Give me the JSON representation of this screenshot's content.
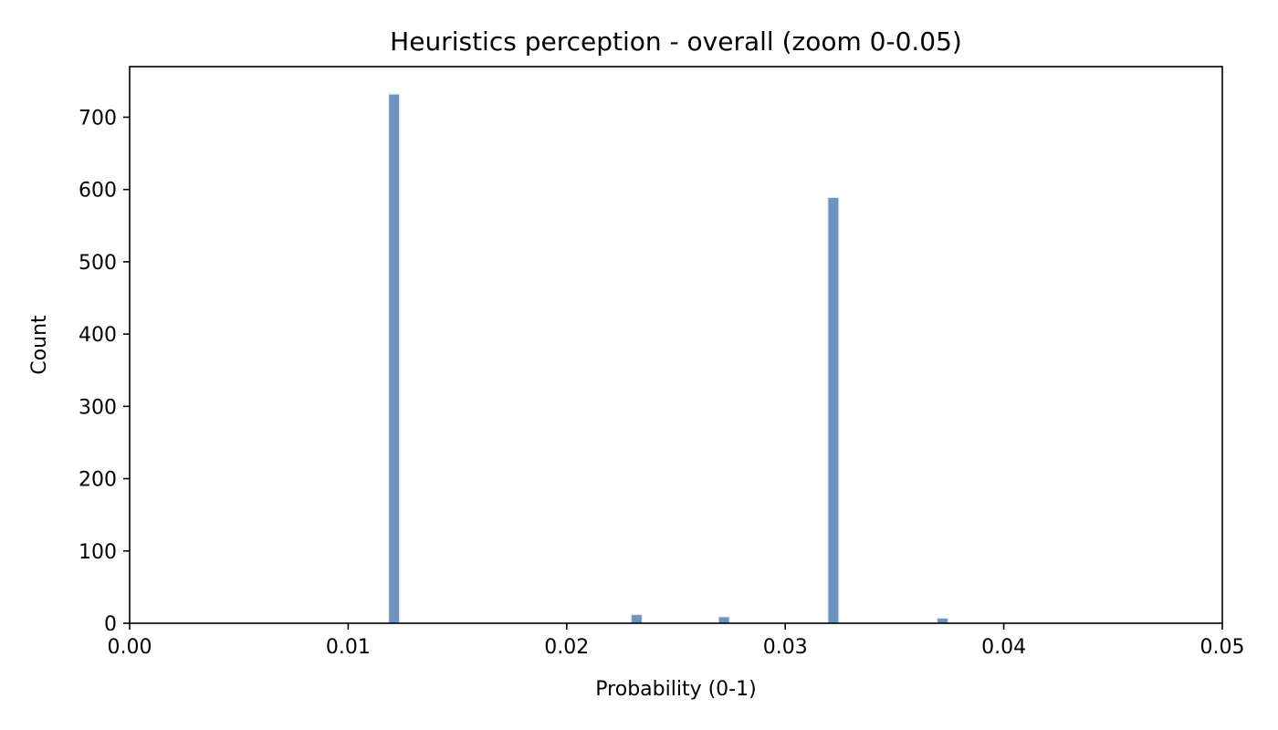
{
  "chart_data": {
    "type": "bar",
    "title": "Heuristics perception - overall (zoom 0-0.05)",
    "xlabel": "Probability (0-1)",
    "ylabel": "Count",
    "xlim": [
      0,
      0.05
    ],
    "ylim": [
      0,
      770
    ],
    "x_ticks": [
      0.0,
      0.01,
      0.02,
      0.03,
      0.04,
      0.05
    ],
    "x_tick_labels": [
      "0.00",
      "0.01",
      "0.02",
      "0.03",
      "0.04",
      "0.05"
    ],
    "y_ticks": [
      0,
      100,
      200,
      300,
      400,
      500,
      600,
      700
    ],
    "y_tick_labels": [
      "0",
      "100",
      "200",
      "300",
      "400",
      "500",
      "600",
      "700"
    ],
    "bin_width": 0.0005,
    "bars": [
      {
        "x": 0.0121,
        "value": 732
      },
      {
        "x": 0.0232,
        "value": 12
      },
      {
        "x": 0.0272,
        "value": 9
      },
      {
        "x": 0.0322,
        "value": 589
      },
      {
        "x": 0.0372,
        "value": 7
      }
    ],
    "bar_color": "#6d93bd",
    "bar_edge_color": "#dfe8f2",
    "grid": false
  }
}
